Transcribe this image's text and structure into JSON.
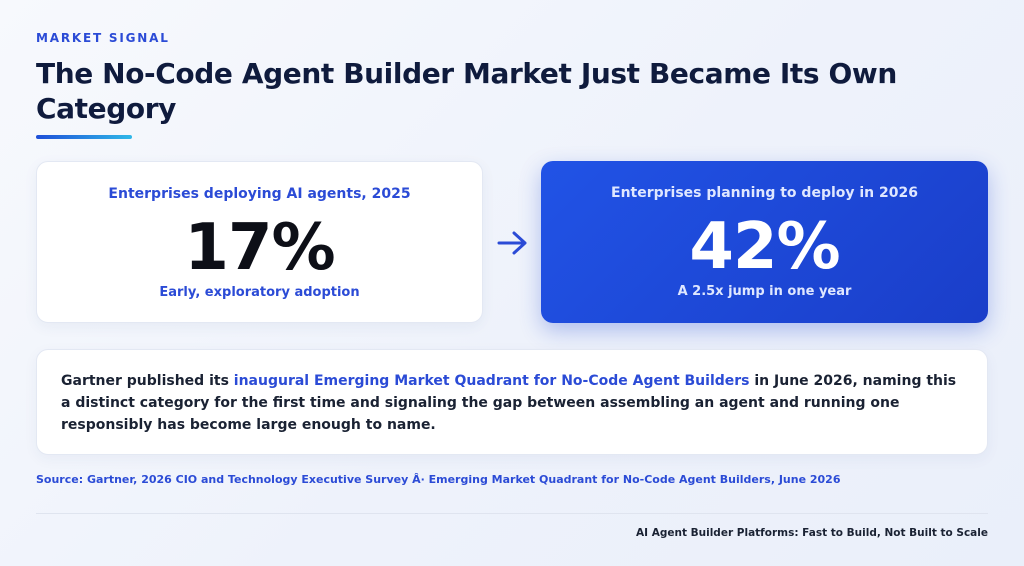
{
  "kicker": "MARKET SIGNAL",
  "title": "The No-Code Agent Builder Market Just Became Its Own Category",
  "stats": {
    "left": {
      "label": "Enterprises deploying AI agents, 2025",
      "value": "17%",
      "note": "Early, exploratory adoption"
    },
    "arrow_icon": "arrow-right-icon",
    "right": {
      "label": "Enterprises planning to deploy in 2026",
      "value": "42%",
      "note": "A 2.5x jump in one year"
    }
  },
  "body": {
    "pre": "Gartner published its ",
    "highlight": "inaugural Emerging Market Quadrant for No-Code Agent Builders",
    "post": " in June 2026, naming this a distinct category for the first time and signaling the gap between assembling an agent and running one responsibly has become large enough to name."
  },
  "source": "Source: Gartner, 2026 CIO and Technology Executive Survey Â· Emerging Market Quadrant for No-Code Agent Builders, June 2026",
  "footer": "AI Agent Builder Platforms: Fast to Build, Not Built to Scale",
  "colors": {
    "accent": "#2b4bd6",
    "highlight_card": "#2153e6",
    "heading": "#0f1b3d"
  }
}
